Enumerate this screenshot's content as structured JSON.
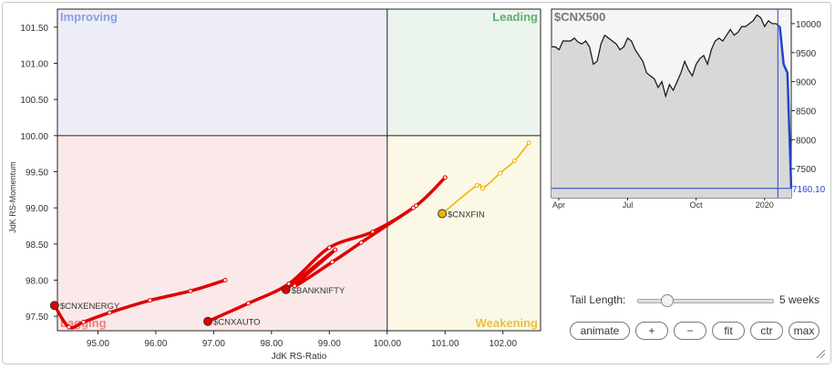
{
  "chart_data": [
    {
      "type": "scatter",
      "subtype": "relative-rotation-graph",
      "xlabel": "JdK RS-Ratio",
      "ylabel": "JdK RS-Momentum",
      "xlim": [
        94.3,
        102.65
      ],
      "ylim": [
        97.3,
        101.75
      ],
      "xticks": [
        "95.00",
        "96.00",
        "97.00",
        "98.00",
        "99.00",
        "100.00",
        "101.00",
        "102.00"
      ],
      "yticks": [
        "97.50",
        "98.00",
        "98.50",
        "99.00",
        "99.50",
        "100.00",
        "100.50",
        "101.00",
        "101.50"
      ],
      "center": [
        100,
        100
      ],
      "quadrants": [
        {
          "label": "Improving",
          "position": "top-left",
          "color": "#8aa0e0"
        },
        {
          "label": "Leading",
          "position": "top-right",
          "color": "#5fae6e"
        },
        {
          "label": "Lagging",
          "position": "bottom-left",
          "color": "#f08080"
        },
        {
          "label": "Weakening",
          "position": "bottom-right",
          "color": "#e8c040"
        }
      ],
      "series": [
        {
          "name": "$CNXENERGY",
          "color": "#e00000",
          "tail": [
            [
              97.2,
              98.0
            ],
            [
              96.6,
              97.85
            ],
            [
              95.9,
              97.72
            ],
            [
              95.2,
              97.55
            ],
            [
              94.75,
              97.42
            ],
            [
              94.5,
              97.35
            ],
            [
              94.25,
              97.65
            ]
          ]
        },
        {
          "name": "$CNXAUTO",
          "color": "#e00000",
          "tail": [
            [
              101.0,
              99.42
            ],
            [
              100.5,
              99.03
            ],
            [
              99.75,
              98.67
            ],
            [
              99.0,
              98.45
            ],
            [
              98.3,
              97.95
            ],
            [
              97.6,
              97.68
            ],
            [
              96.9,
              97.43
            ]
          ]
        },
        {
          "name": "$BANKNIFTY",
          "color": "#e00000",
          "tail": [
            [
              100.45,
              99.0
            ],
            [
              99.55,
              98.52
            ],
            [
              99.05,
              98.25
            ],
            [
              98.4,
              97.92
            ],
            [
              99.1,
              98.42
            ],
            [
              98.25,
              97.87
            ]
          ]
        },
        {
          "name": "$CNXFIN",
          "color": "#f0b400",
          "tail": [
            [
              102.45,
              99.9
            ],
            [
              102.2,
              99.65
            ],
            [
              101.95,
              99.48
            ],
            [
              101.65,
              99.27
            ],
            [
              101.55,
              99.31
            ],
            [
              100.95,
              98.92
            ]
          ]
        }
      ]
    },
    {
      "type": "line",
      "title": "$CNX500",
      "color": "#888888",
      "recent_color": "#2244cc",
      "y_ticks": [
        "10000",
        "9500",
        "9000",
        "8500",
        "8000",
        "7500"
      ],
      "x_ticks": [
        "Apr",
        "Jul",
        "Oct",
        "2020"
      ],
      "ylim": [
        7000,
        10250
      ],
      "last_value_label": "7160.10",
      "x": [
        0,
        1,
        2,
        3,
        4,
        5,
        6,
        7,
        8,
        9,
        10,
        11,
        12,
        13,
        14,
        15,
        16,
        17,
        18,
        19,
        20,
        21,
        22,
        23,
        24,
        25,
        26,
        27,
        28,
        29,
        30,
        31,
        32,
        33,
        34,
        35,
        36,
        37,
        38,
        39,
        40,
        41,
        42,
        43,
        44,
        45,
        46,
        47,
        48,
        49,
        50,
        51,
        52,
        53,
        54,
        55,
        56,
        57,
        58,
        59,
        60,
        61,
        62,
        63
      ],
      "values": [
        9600,
        9600,
        9550,
        9700,
        9700,
        9700,
        9750,
        9680,
        9650,
        9700,
        9600,
        9300,
        9350,
        9650,
        9800,
        9750,
        9700,
        9650,
        9550,
        9600,
        9750,
        9700,
        9550,
        9450,
        9350,
        9150,
        9100,
        9050,
        8900,
        9000,
        8750,
        8950,
        8850,
        9000,
        9150,
        9350,
        9200,
        9100,
        9300,
        9400,
        9450,
        9300,
        9550,
        9700,
        9750,
        9700,
        9800,
        9900,
        9800,
        9850,
        9950,
        9950,
        10000,
        10050,
        10150,
        10100,
        9950,
        10050,
        10000,
        10000,
        9950,
        9300,
        9150,
        7160
      ],
      "recent_from_index": 60
    }
  ],
  "controls": {
    "tail_length_label": "Tail Length:",
    "tail_length_value": "5 weeks",
    "tail_fraction": 0.1,
    "buttons": [
      "animate",
      "+",
      "−",
      "fit",
      "ctr",
      "max"
    ]
  }
}
